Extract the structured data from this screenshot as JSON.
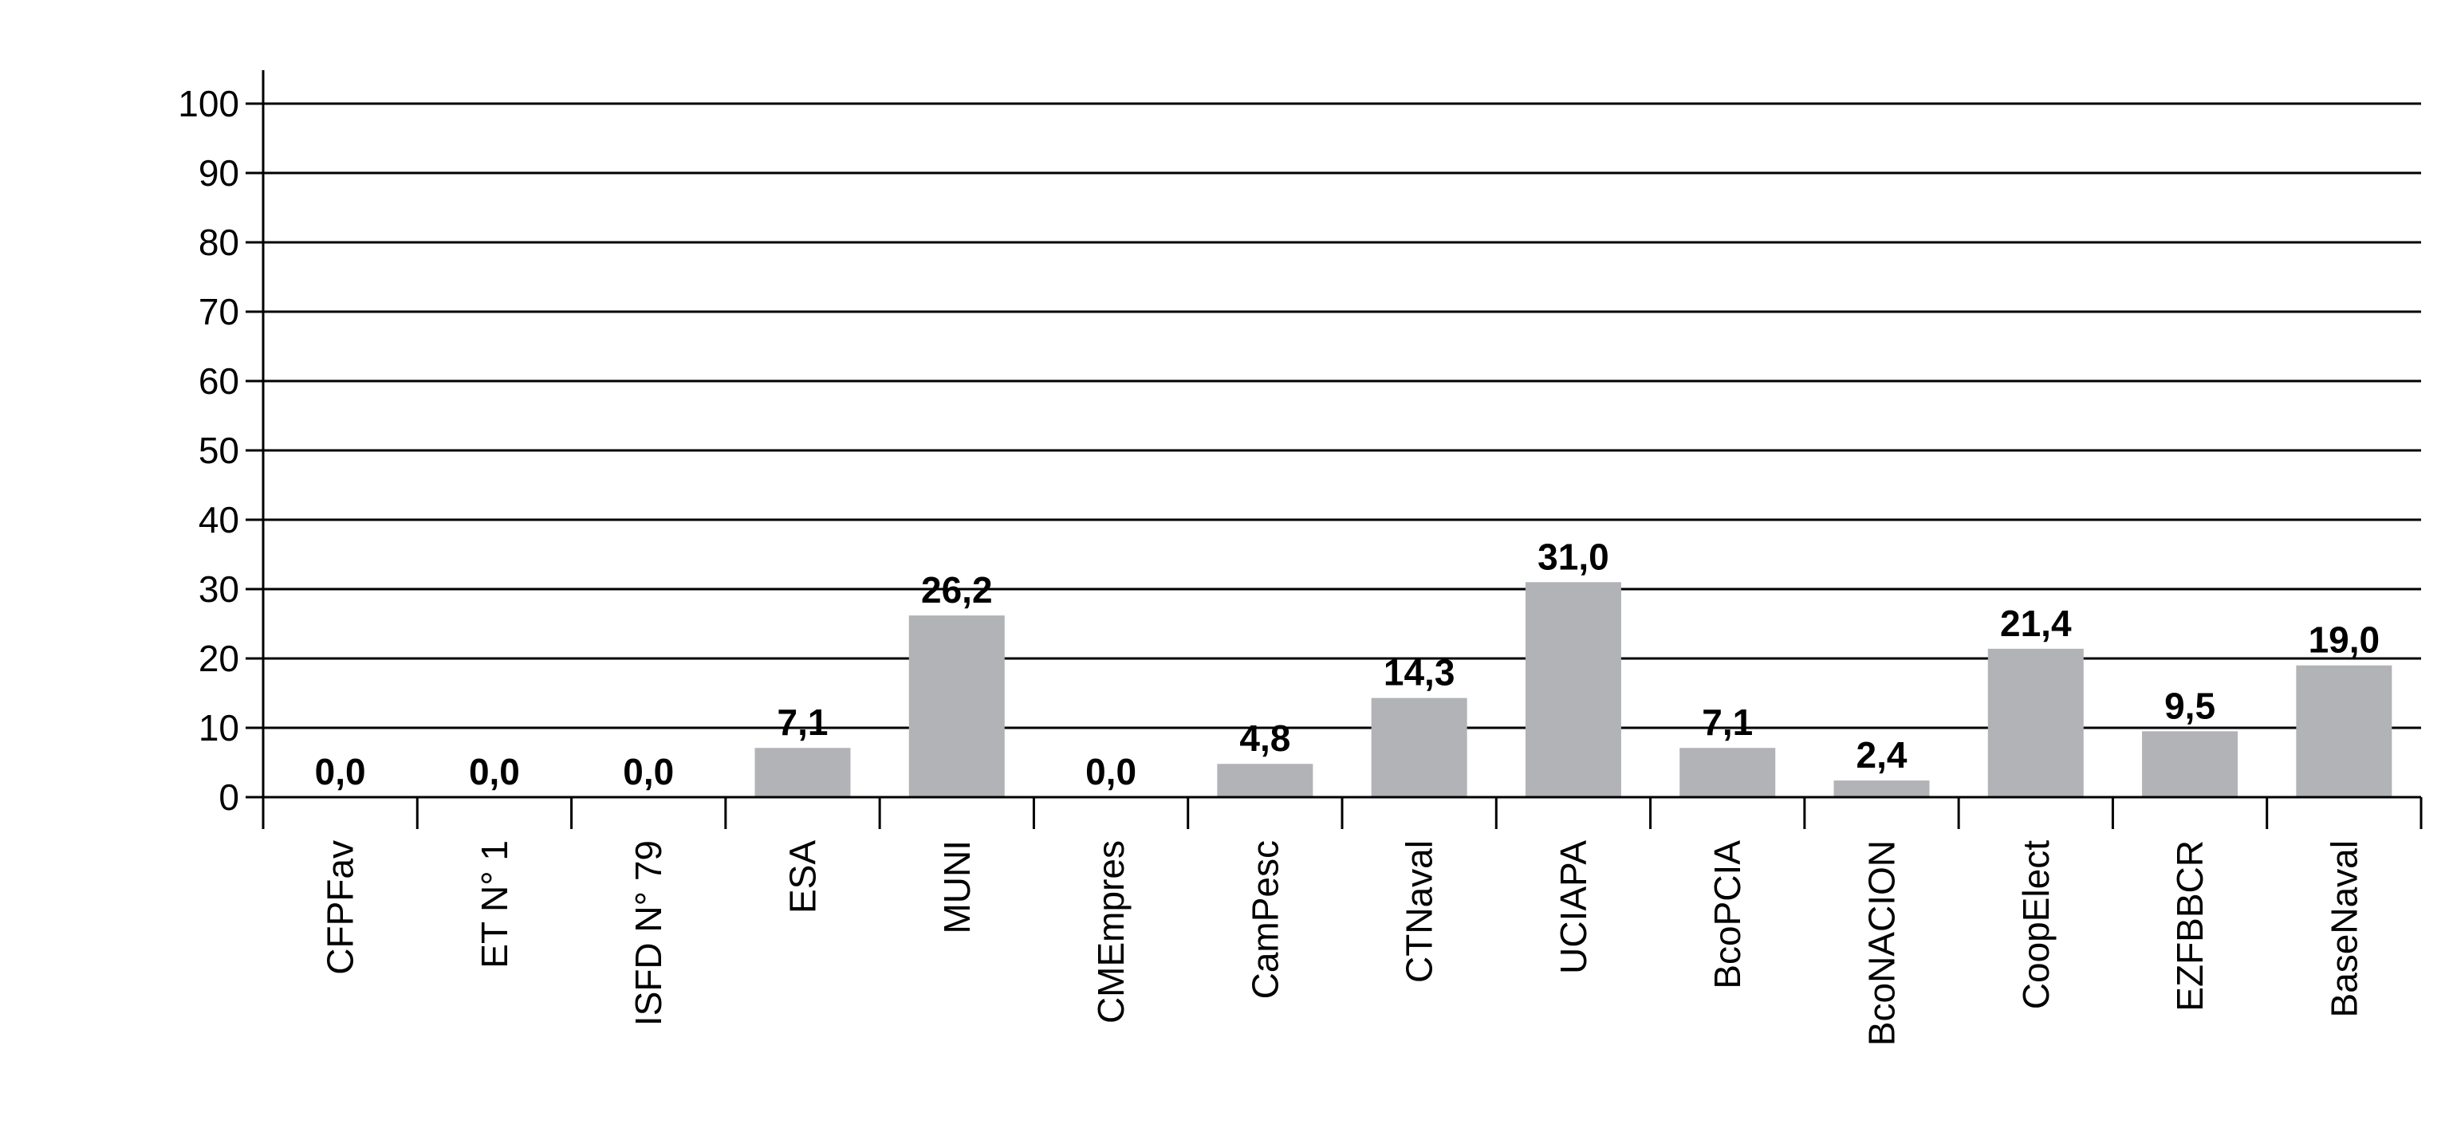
{
  "chart_data": {
    "type": "bar",
    "title": "",
    "xlabel": "",
    "ylabel": "",
    "categories": [
      "CFPFav",
      "ET N° 1",
      "ISFD N° 79",
      "ESA",
      "MUNI",
      "CMEmpres",
      "CamPesc",
      "CTNaval",
      "UCIAPA",
      "BcoPCIA",
      "BcoNACION",
      "CoopElect",
      "EZFBBCR",
      "BaseNaval"
    ],
    "values": [
      0.0,
      0.0,
      0.0,
      7.1,
      26.2,
      0.0,
      4.8,
      14.3,
      31.0,
      7.1,
      2.4,
      21.4,
      9.5,
      19.0
    ],
    "data_labels": [
      "0,0",
      "0,0",
      "0,0",
      "7,1",
      "26,2",
      "0,0",
      "4,8",
      "14,3",
      "31,0",
      "7,1",
      "2,4",
      "21,4",
      "9,5",
      "19,0"
    ],
    "y_ticks": [
      0,
      10,
      20,
      30,
      40,
      50,
      60,
      70,
      80,
      90,
      100
    ],
    "ylim": [
      0,
      100
    ],
    "grid": true,
    "legend": "none",
    "colors": {
      "bar": "#b1b3b6",
      "gridline": "#000000",
      "axis": "#000000",
      "text": "#000000"
    }
  }
}
